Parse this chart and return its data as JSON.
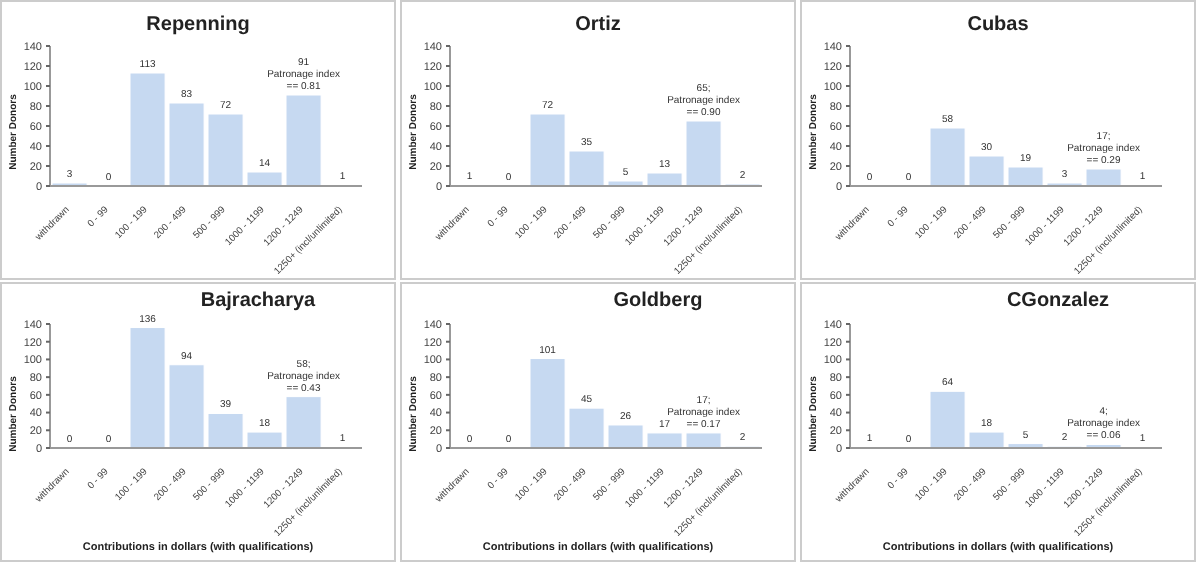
{
  "chart_data": [
    {
      "type": "bar",
      "title": "Repenning",
      "ylabel": "Number Donors",
      "categories": [
        "withdrawn",
        "0 - 99",
        "100 - 199",
        "200 - 499",
        "500 - 999",
        "1000 - 1199",
        "1200 - 1249",
        "1250+ (incl/unlimited)"
      ],
      "values": [
        3,
        0,
        113,
        83,
        72,
        14,
        91,
        1
      ],
      "value_labels": [
        "3",
        "0",
        "113",
        "83",
        "72",
        "14",
        "91\nPatronage index\n== 0.81",
        "1"
      ],
      "color": "#c6d9f1",
      "ylim": [
        0,
        140
      ],
      "yticks": [
        0,
        20,
        40,
        60,
        80,
        100,
        120,
        140
      ]
    },
    {
      "type": "bar",
      "title": "Ortiz",
      "ylabel": "Number Donors",
      "categories": [
        "withdrawn",
        "0 - 99",
        "100 - 199",
        "200 - 499",
        "500 - 999",
        "1000 - 1199",
        "1200 - 1249",
        "1250+ (incl/unlimited)"
      ],
      "values": [
        1,
        0,
        72,
        35,
        5,
        13,
        65,
        2
      ],
      "value_labels": [
        "1",
        "0",
        "72",
        "35",
        "5",
        "13",
        "65;\nPatronage index\n== 0.90",
        "2"
      ],
      "color": "#c6d9f1",
      "ylim": [
        0,
        140
      ],
      "yticks": [
        0,
        20,
        40,
        60,
        80,
        100,
        120,
        140
      ]
    },
    {
      "type": "bar",
      "title": "Cubas",
      "ylabel": "Number Donors",
      "categories": [
        "withdrawn",
        "0 - 99",
        "100 - 199",
        "200 - 499",
        "500 - 999",
        "1000 - 1199",
        "1200 - 1249",
        "1250+ (incl/unlimited)"
      ],
      "values": [
        0,
        0,
        58,
        30,
        19,
        3,
        17,
        1
      ],
      "value_labels": [
        "0",
        "0",
        "58",
        "30",
        "19",
        "3",
        "17;\nPatronage index\n== 0.29",
        "1"
      ],
      "color": "#c6d9f1",
      "ylim": [
        0,
        140
      ],
      "yticks": [
        0,
        20,
        40,
        60,
        80,
        100,
        120,
        140
      ]
    },
    {
      "type": "bar",
      "title": "Bajracharya",
      "ylabel": "Number Donors",
      "xlabel": "Contributions in dollars (with qualifications)",
      "categories": [
        "withdrawn",
        "0 - 99",
        "100 - 199",
        "200 - 499",
        "500 - 999",
        "1000 - 1199",
        "1200 - 1249",
        "1250+ (incl/unlimited)"
      ],
      "values": [
        0,
        0,
        136,
        94,
        39,
        18,
        58,
        1
      ],
      "value_labels": [
        "0",
        "0",
        "136",
        "94",
        "39",
        "18",
        "58;\nPatronage index\n== 0.43",
        "1"
      ],
      "color": "#c6d9f1",
      "ylim": [
        0,
        140
      ],
      "yticks": [
        0,
        20,
        40,
        60,
        80,
        100,
        120,
        140
      ]
    },
    {
      "type": "bar",
      "title": "Goldberg",
      "ylabel": "Number Donors",
      "xlabel": "Contributions in dollars (with qualifications)",
      "categories": [
        "withdrawn",
        "0 - 99",
        "100 - 199",
        "200 - 499",
        "500 - 999",
        "1000 - 1199",
        "1200 - 1249",
        "1250+ (incl/unlimited)"
      ],
      "values": [
        0,
        0,
        101,
        45,
        26,
        17,
        17,
        2
      ],
      "value_labels": [
        "0",
        "0",
        "101",
        "45",
        "26",
        "17",
        "17;\nPatronage index\n== 0.17",
        "2"
      ],
      "color": "#c6d9f1",
      "ylim": [
        0,
        140
      ],
      "yticks": [
        0,
        20,
        40,
        60,
        80,
        100,
        120,
        140
      ]
    },
    {
      "type": "bar",
      "title": "CGonzalez",
      "ylabel": "Number Donors",
      "xlabel": "Contributions in dollars (with qualifications)",
      "categories": [
        "withdrawn",
        "0 - 99",
        "100 - 199",
        "200 - 499",
        "500 - 999",
        "1000 - 1199",
        "1200 - 1249",
        "1250+ (incl/unlimited)"
      ],
      "values": [
        1,
        0,
        64,
        18,
        5,
        2,
        4,
        1
      ],
      "value_labels": [
        "1",
        "0",
        "64",
        "18",
        "5",
        "2",
        "4;\nPatronage index\n== 0.06",
        "1"
      ],
      "color": "#c6d9f1",
      "ylim": [
        0,
        140
      ],
      "yticks": [
        0,
        20,
        40,
        60,
        80,
        100,
        120,
        140
      ]
    }
  ]
}
